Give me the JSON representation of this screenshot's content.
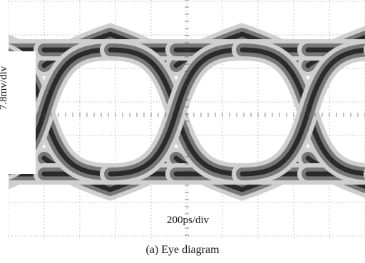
{
  "figure": {
    "y_scale_label": "7.8mv/div",
    "x_scale_label": "200ps/div",
    "caption": "(a) Eye diagram"
  }
}
